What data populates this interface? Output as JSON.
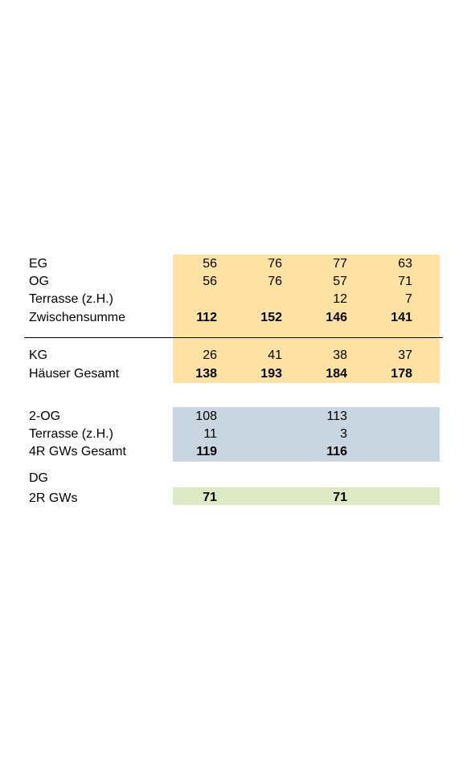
{
  "colors": {
    "orange": "#FFE2A4",
    "blue": "#C9D5E0",
    "green": "#DDE8C5"
  },
  "rows": {
    "eg": {
      "label": "EG",
      "values": [
        "56",
        "76",
        "77",
        "63"
      ]
    },
    "og": {
      "label": "OG",
      "values": [
        "56",
        "76",
        "57",
        "71"
      ]
    },
    "terrasse1": {
      "label": "Terrasse (z.H.)",
      "values": [
        "",
        "",
        "12",
        "7"
      ]
    },
    "zwischensumme": {
      "label": "Zwischensumme",
      "values": [
        "112",
        "152",
        "146",
        "141"
      ]
    },
    "kg": {
      "label": "KG",
      "values": [
        "26",
        "41",
        "38",
        "37"
      ]
    },
    "haeuser": {
      "label": "Häuser Gesamt",
      "values": [
        "138",
        "193",
        "184",
        "178"
      ]
    },
    "og2": {
      "label": "2-OG",
      "values": [
        "108",
        "",
        "113",
        ""
      ]
    },
    "terrasse2": {
      "label": "Terrasse (z.H.)",
      "values": [
        "11",
        "",
        "3",
        ""
      ]
    },
    "gw4r": {
      "label": "4R GWs Gesamt",
      "values": [
        "119",
        "",
        "116",
        ""
      ]
    },
    "dg": {
      "label": "DG"
    },
    "gw2r": {
      "label": "2R GWs",
      "values": [
        "71",
        "",
        "71",
        ""
      ]
    }
  }
}
